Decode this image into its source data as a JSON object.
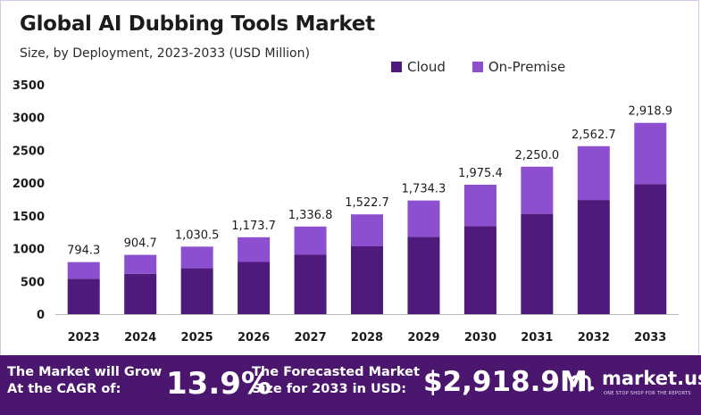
{
  "header": {
    "title": "Global AI Dubbing Tools Market",
    "subtitle": "Size, by Deployment, 2023-2033 (USD Million)"
  },
  "colors": {
    "cloud": "#4e1a7b",
    "on_premise": "#8c4fcf",
    "footer_bg": "#4b166e"
  },
  "chart_data": {
    "type": "bar",
    "stacked": true,
    "categories": [
      "2023",
      "2024",
      "2025",
      "2026",
      "2027",
      "2028",
      "2029",
      "2030",
      "2031",
      "2032",
      "2033"
    ],
    "series": [
      {
        "name": "Cloud",
        "values": [
          540,
          615,
          700,
          797,
          910,
          1035,
          1180,
          1343,
          1530,
          1742,
          1985
        ]
      },
      {
        "name": "On-Premise",
        "values": [
          254.3,
          289.7,
          330.5,
          376.7,
          426.8,
          487.7,
          554.3,
          632.4,
          720.0,
          820.7,
          933.9
        ]
      }
    ],
    "totals_labels": [
      "794.3",
      "904.7",
      "1,030.5",
      "1,173.7",
      "1,336.8",
      "1,522.7",
      "1,734.3",
      "1,975.4",
      "2,250.0",
      "2,562.7",
      "2,918.9"
    ],
    "totals": [
      794.3,
      904.7,
      1030.5,
      1173.7,
      1336.8,
      1522.7,
      1734.3,
      1975.4,
      2250.0,
      2562.7,
      2918.9
    ],
    "ylim": [
      0,
      3500
    ],
    "yticks": [
      "0",
      "500",
      "1000",
      "1500",
      "2000",
      "2500",
      "3000",
      "3500"
    ],
    "ytick_values": [
      0,
      500,
      1000,
      1500,
      2000,
      2500,
      3000,
      3500
    ],
    "grid": false,
    "legend_position": "top-right"
  },
  "footer": {
    "cagr_text": "The Market will Grow At the CAGR of:",
    "cagr_value": "13.9%",
    "forecast_text": "The Forecasted Market Size for 2033 in USD:",
    "forecast_value": "$2,918.9M",
    "brand": "market.us",
    "tagline": "ONE STOP SHOP FOR THE REPORTS"
  }
}
